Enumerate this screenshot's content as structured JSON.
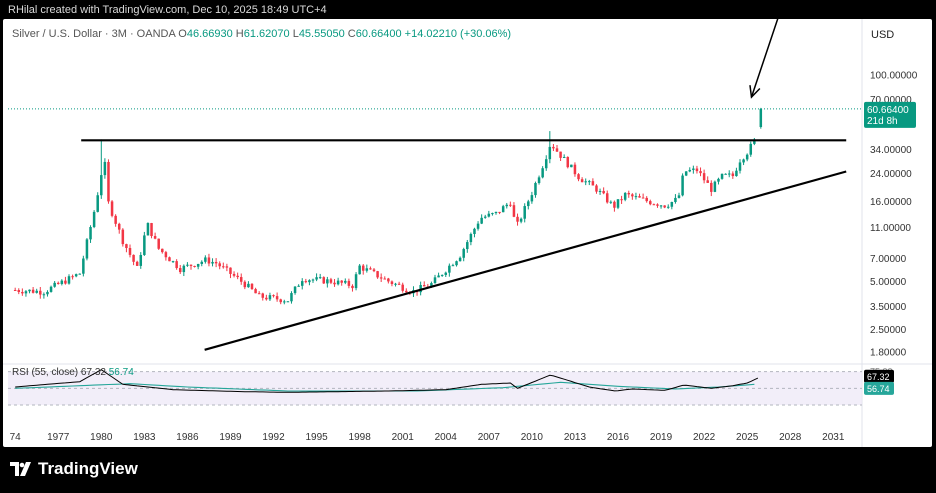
{
  "header": {
    "text": "RHilal created with TradingView.com, Dec 10, 2025 18:49 UTC+4"
  },
  "legend": {
    "symbol": "Silver / U.S. Dollar · 3M · OANDA",
    "open_label": "O",
    "open": "46.66930",
    "high_label": "H",
    "high": "61.62070",
    "low_label": "L",
    "low": "45.55050",
    "close_label": "C",
    "close": "60.66400",
    "change": "+14.02210 (+30.06%)"
  },
  "currency": "USD",
  "price_tag": {
    "value": "60.66400",
    "countdown": "21d 8h"
  },
  "rsi": {
    "label": "RSI (55, close)",
    "value": "67.32",
    "ma_value": "56.74",
    "tag_value": "67.32",
    "tag_ma": "56.74",
    "level_75": "75.00"
  },
  "footer": {
    "brand": "TradingView"
  },
  "colors": {
    "up": "#089981",
    "down": "#f23645",
    "rsi": "#000000",
    "rsi_ma": "#26a69a",
    "band": "#ede7f6"
  },
  "chart_data": {
    "type": "candlestick",
    "title": "Silver / U.S. Dollar · 3M · OANDA",
    "y_scale": "log",
    "y_ticks": [
      "100.00000",
      "70.00000",
      "34.00000",
      "24.00000",
      "16.00000",
      "11.00000",
      "7.00000",
      "5.00000",
      "3.50000",
      "2.50000",
      "1.80000"
    ],
    "x_ticks": [
      "74",
      "1977",
      "1980",
      "1983",
      "1986",
      "1989",
      "1992",
      "1995",
      "1998",
      "2001",
      "2004",
      "2007",
      "2010",
      "2013",
      "2016",
      "2019",
      "2022",
      "2025",
      "2028",
      "2031"
    ],
    "series": [
      {
        "name": "price",
        "anchors": [
          {
            "x": 1974.0,
            "y": 4.4
          },
          {
            "x": 1976.0,
            "y": 4.3
          },
          {
            "x": 1978.5,
            "y": 5.6
          },
          {
            "x": 1979.6,
            "y": 15.0
          },
          {
            "x": 1980.2,
            "y": 30.0
          },
          {
            "x": 1980.5,
            "y": 15.5
          },
          {
            "x": 1981.5,
            "y": 9.0
          },
          {
            "x": 1982.5,
            "y": 6.0
          },
          {
            "x": 1983.2,
            "y": 11.5
          },
          {
            "x": 1984.0,
            "y": 8.0
          },
          {
            "x": 1985.5,
            "y": 6.0
          },
          {
            "x": 1987.3,
            "y": 6.8
          },
          {
            "x": 1988.0,
            "y": 6.5
          },
          {
            "x": 1990.0,
            "y": 4.8
          },
          {
            "x": 1991.0,
            "y": 4.0
          },
          {
            "x": 1993.0,
            "y": 3.8
          },
          {
            "x": 1994.0,
            "y": 5.2
          },
          {
            "x": 1996.0,
            "y": 5.0
          },
          {
            "x": 1997.5,
            "y": 4.7
          },
          {
            "x": 1998.0,
            "y": 6.2
          },
          {
            "x": 2000.0,
            "y": 5.0
          },
          {
            "x": 2001.7,
            "y": 4.3
          },
          {
            "x": 2003.0,
            "y": 4.8
          },
          {
            "x": 2005.0,
            "y": 7.3
          },
          {
            "x": 2006.4,
            "y": 12.5
          },
          {
            "x": 2007.5,
            "y": 13.3
          },
          {
            "x": 2008.5,
            "y": 15.8
          },
          {
            "x": 2008.9,
            "y": 10.8
          },
          {
            "x": 2010.0,
            "y": 18.0
          },
          {
            "x": 2010.9,
            "y": 29.0
          },
          {
            "x": 2011.3,
            "y": 37.0
          },
          {
            "x": 2012.0,
            "y": 31.0
          },
          {
            "x": 2013.3,
            "y": 22.5
          },
          {
            "x": 2014.5,
            "y": 19.0
          },
          {
            "x": 2015.7,
            "y": 14.7
          },
          {
            "x": 2016.5,
            "y": 17.5
          },
          {
            "x": 2018.0,
            "y": 16.0
          },
          {
            "x": 2019.3,
            "y": 15.0
          },
          {
            "x": 2020.2,
            "y": 16.5
          },
          {
            "x": 2020.6,
            "y": 24.5
          },
          {
            "x": 2021.5,
            "y": 25.0
          },
          {
            "x": 2022.5,
            "y": 19.0
          },
          {
            "x": 2023.3,
            "y": 23.0
          },
          {
            "x": 2024.0,
            "y": 23.0
          },
          {
            "x": 2024.5,
            "y": 29.0
          },
          {
            "x": 2025.0,
            "y": 32.5
          },
          {
            "x": 2025.5,
            "y": 38.0
          },
          {
            "x": 2025.8,
            "y": 46.7
          },
          {
            "x": 2025.95,
            "y": 60.66
          }
        ]
      },
      {
        "name": "RSI",
        "anchors": [
          {
            "x": 1974.0,
            "y": 52
          },
          {
            "x": 1978.5,
            "y": 60
          },
          {
            "x": 1980.0,
            "y": 78
          },
          {
            "x": 1981.5,
            "y": 56
          },
          {
            "x": 1985.0,
            "y": 48
          },
          {
            "x": 1990.0,
            "y": 45
          },
          {
            "x": 1993.0,
            "y": 44
          },
          {
            "x": 2000.0,
            "y": 46
          },
          {
            "x": 2004.0,
            "y": 48
          },
          {
            "x": 2006.5,
            "y": 56
          },
          {
            "x": 2008.5,
            "y": 58
          },
          {
            "x": 2009.0,
            "y": 50
          },
          {
            "x": 2011.3,
            "y": 70
          },
          {
            "x": 2012.5,
            "y": 62
          },
          {
            "x": 2014.0,
            "y": 52
          },
          {
            "x": 2015.8,
            "y": 46
          },
          {
            "x": 2017.0,
            "y": 49
          },
          {
            "x": 2019.3,
            "y": 47
          },
          {
            "x": 2020.6,
            "y": 55
          },
          {
            "x": 2022.5,
            "y": 50
          },
          {
            "x": 2024.0,
            "y": 54
          },
          {
            "x": 2025.0,
            "y": 58
          },
          {
            "x": 2025.95,
            "y": 67.32
          }
        ]
      },
      {
        "name": "RSI MA",
        "anchors": [
          {
            "x": 1974.0,
            "y": 50
          },
          {
            "x": 1982.0,
            "y": 57
          },
          {
            "x": 1986.0,
            "y": 52
          },
          {
            "x": 1993.0,
            "y": 46
          },
          {
            "x": 2002.0,
            "y": 46
          },
          {
            "x": 2008.0,
            "y": 51
          },
          {
            "x": 2012.0,
            "y": 59
          },
          {
            "x": 2016.0,
            "y": 53
          },
          {
            "x": 2020.0,
            "y": 49
          },
          {
            "x": 2023.0,
            "y": 52
          },
          {
            "x": 2025.95,
            "y": 56.74
          }
        ]
      }
    ],
    "annotations": [
      {
        "type": "horizontal_line",
        "x1": 1978.6,
        "x2": 2031.9,
        "y": 38.5
      },
      {
        "type": "trendline",
        "x1": 1987.2,
        "y1": 1.85,
        "x2": 2031.9,
        "y2": 24.5
      },
      {
        "type": "arrow",
        "x1": 2027.6,
        "y1": 300,
        "x2": 2025.3,
        "y2": 72
      }
    ],
    "xlim": [
      1973.5,
      2033.0
    ],
    "ylim": [
      1.55,
      160.0
    ],
    "rsi_band": [
      25,
      75
    ]
  }
}
